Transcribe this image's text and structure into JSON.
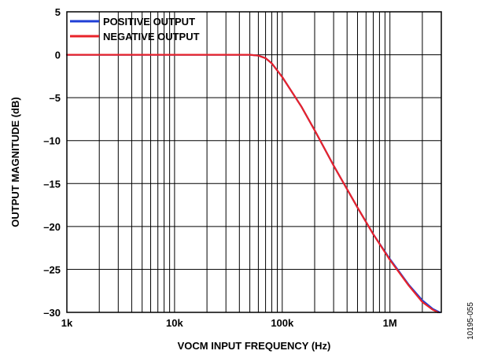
{
  "chart_data": {
    "type": "line",
    "xlabel": "VOCM INPUT FREQUENCY (Hz)",
    "ylabel": "OUTPUT MAGNITUDE (dB)",
    "x_scale": "log",
    "xlim": [
      1000,
      3000000
    ],
    "ylim": [
      -30,
      5
    ],
    "x_ticks": [
      {
        "value": 1000,
        "label": "1k"
      },
      {
        "value": 10000,
        "label": "10k"
      },
      {
        "value": 100000,
        "label": "100k"
      },
      {
        "value": 1000000,
        "label": "1M"
      }
    ],
    "y_ticks": [
      {
        "value": 5,
        "label": "5"
      },
      {
        "value": 0,
        "label": "0"
      },
      {
        "value": -5,
        "label": "–5"
      },
      {
        "value": -10,
        "label": "–10"
      },
      {
        "value": -15,
        "label": "–15"
      },
      {
        "value": -20,
        "label": "–20"
      },
      {
        "value": -25,
        "label": "–25"
      },
      {
        "value": -30,
        "label": "–30"
      }
    ],
    "grid": true,
    "legend_position": "top-left",
    "series": [
      {
        "name": "POSITIVE OUTPUT",
        "color": "#1f3fd6",
        "x": [
          1000,
          5000,
          10000,
          30000,
          50000,
          60000,
          70000,
          80000,
          100000,
          150000,
          200000,
          300000,
          500000,
          700000,
          1000000,
          1500000,
          2000000,
          2500000,
          2900000
        ],
        "y": [
          0,
          0,
          0,
          0,
          0,
          -0.1,
          -0.4,
          -1.0,
          -2.6,
          -6.0,
          -8.8,
          -12.9,
          -17.8,
          -20.9,
          -23.8,
          -26.8,
          -28.6,
          -29.6,
          -30
        ]
      },
      {
        "name": "NEGATIVE OUTPUT",
        "color": "#e8232a",
        "x": [
          1000,
          5000,
          10000,
          30000,
          50000,
          60000,
          70000,
          80000,
          100000,
          150000,
          200000,
          300000,
          500000,
          700000,
          1000000,
          1500000,
          2000000,
          2500000,
          2800000
        ],
        "y": [
          0,
          0,
          0,
          0,
          0,
          -0.1,
          -0.4,
          -1.0,
          -2.6,
          -6.0,
          -8.8,
          -12.9,
          -17.8,
          -20.9,
          -23.9,
          -26.9,
          -28.8,
          -29.7,
          -30
        ]
      }
    ]
  },
  "figure_id": "10195-055"
}
